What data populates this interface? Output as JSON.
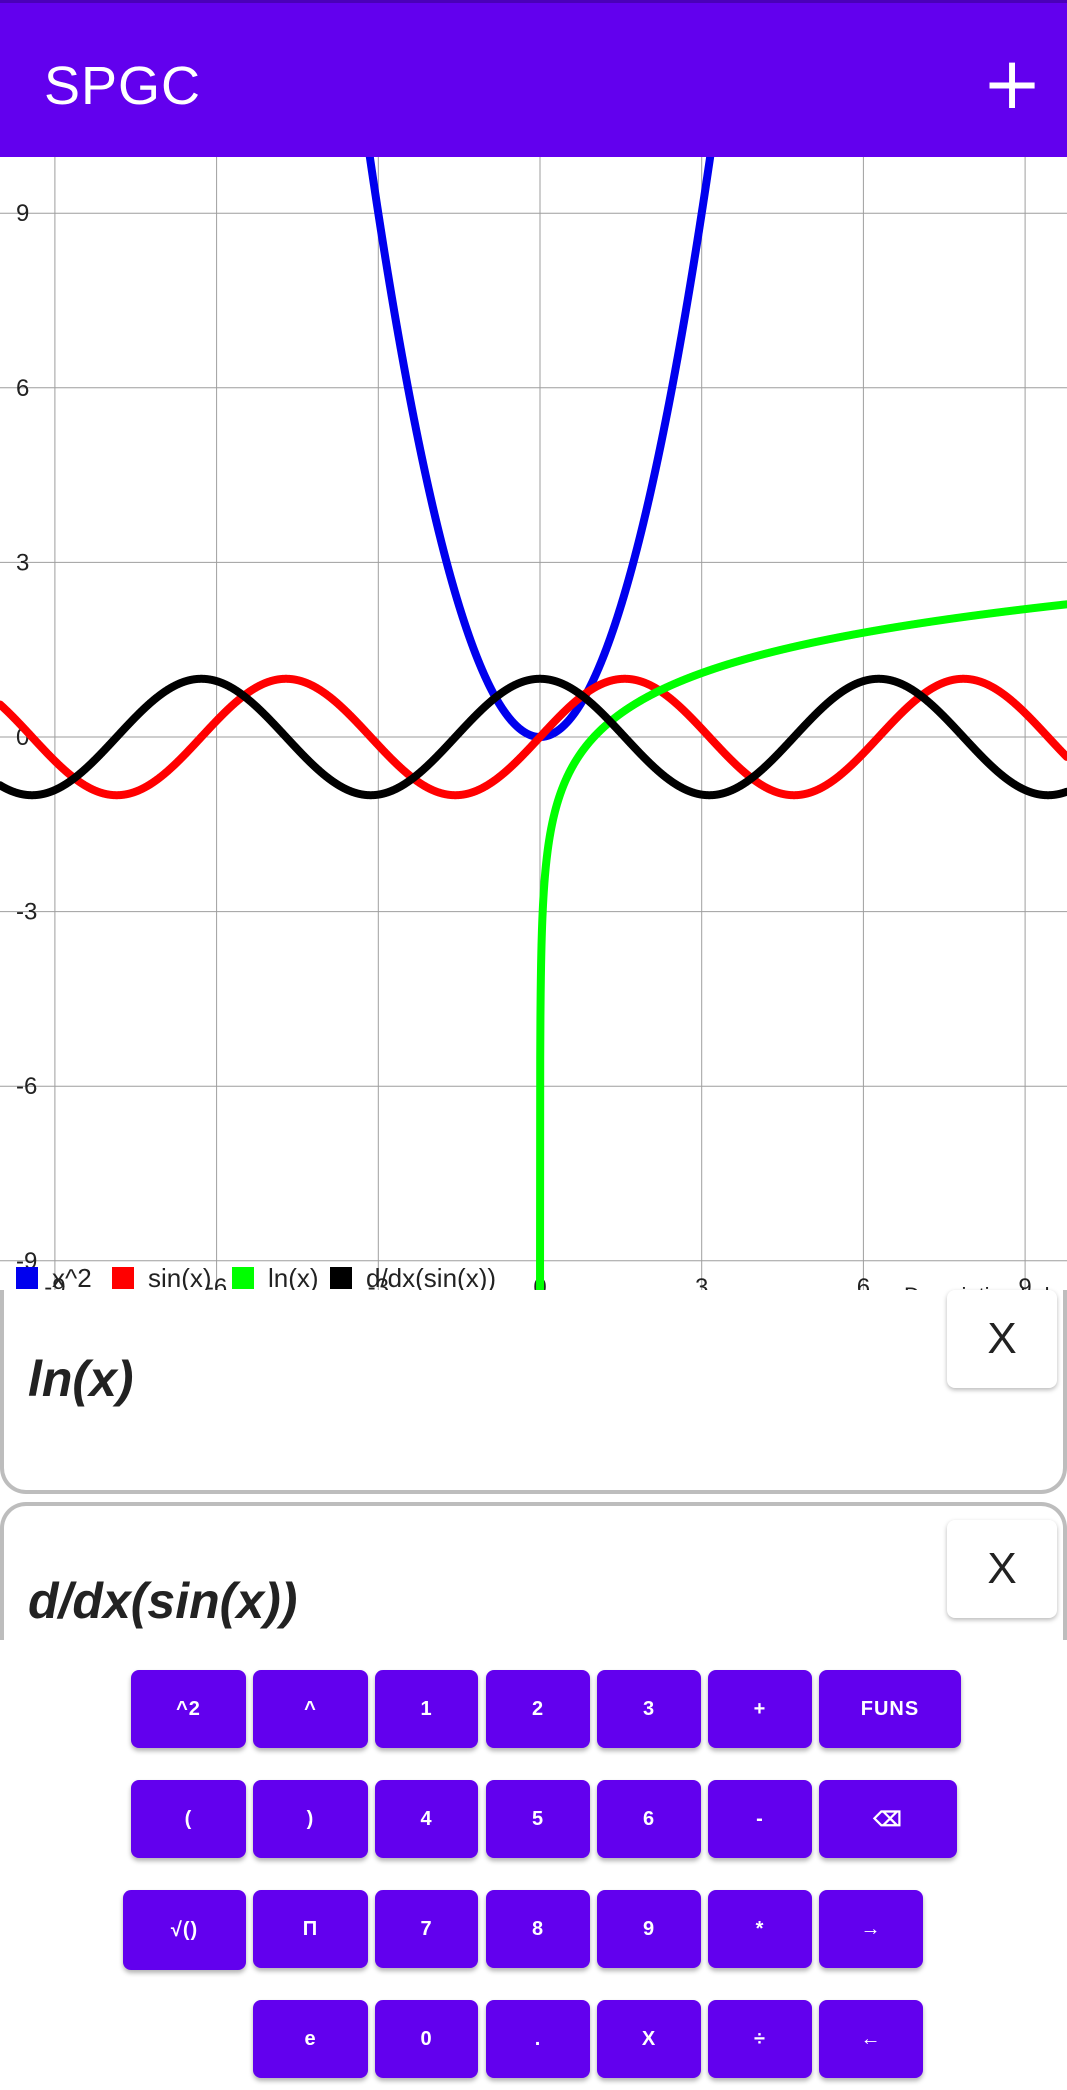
{
  "app": {
    "title": "SPGC",
    "add_label": "+"
  },
  "chart_data": {
    "type": "line",
    "xlim": [
      -12,
      13
    ],
    "ylim": [
      -10.3,
      10.3
    ],
    "x_ticks": [
      "-9",
      "-6",
      "-3",
      "0",
      "3",
      "6",
      "9"
    ],
    "y_ticks": [
      "9",
      "6",
      "3",
      "0",
      "-3",
      "-6",
      "-9"
    ],
    "grid": true,
    "legend_position": "bottom-left",
    "description_label": "Description Label",
    "series": [
      {
        "name": "x^2",
        "color": "#0000EE",
        "x": [
          -2.7,
          -2,
          -1,
          0,
          1,
          2,
          2.7
        ],
        "y": [
          7.29,
          4,
          1,
          0,
          1,
          4,
          7.29
        ]
      },
      {
        "name": "sin(x)",
        "color": "#FF0000",
        "x": [
          -10,
          -7.85,
          -4.71,
          -1.57,
          0,
          1.57,
          4.71,
          7.85,
          9.5
        ],
        "y": [
          0.54,
          -1,
          1,
          -1,
          0,
          1,
          -1,
          1,
          -0.08
        ]
      },
      {
        "name": "ln(x)",
        "color": "#00FF00",
        "x": [
          0.0001,
          0.1,
          1,
          3,
          6,
          9.8
        ],
        "y": [
          -9.21,
          -2.3,
          0,
          1.1,
          1.79,
          2.28
        ]
      },
      {
        "name": "d/dx(sin(x))",
        "color": "#000000",
        "x": [
          -10,
          -6.28,
          -3.14,
          0,
          3.14,
          6.28,
          9.8
        ],
        "y": [
          -0.84,
          1,
          -1,
          1,
          -1,
          1,
          -0.93
        ]
      }
    ]
  },
  "functions": [
    {
      "text": "ln(x)",
      "remove_label": "X"
    },
    {
      "text": "d/dx(sin(x))",
      "remove_label": "X"
    }
  ],
  "keyboard": {
    "rows": [
      [
        {
          "label": "^2",
          "name": "key-square"
        },
        {
          "label": "^",
          "name": "key-power"
        },
        {
          "label": "1",
          "name": "key-1"
        },
        {
          "label": "2",
          "name": "key-2"
        },
        {
          "label": "3",
          "name": "key-3"
        },
        {
          "label": "+",
          "name": "key-plus"
        },
        {
          "label": "FUNS",
          "name": "key-funs"
        }
      ],
      [
        {
          "label": "(",
          "name": "key-open-paren"
        },
        {
          "label": ")",
          "name": "key-close-paren"
        },
        {
          "label": "4",
          "name": "key-4"
        },
        {
          "label": "5",
          "name": "key-5"
        },
        {
          "label": "6",
          "name": "key-6"
        },
        {
          "label": "-",
          "name": "key-minus"
        },
        {
          "label": "⌫",
          "name": "key-backspace"
        }
      ],
      [
        {
          "label": "√()",
          "name": "key-sqrt"
        },
        {
          "label": "Π",
          "name": "key-pi"
        },
        {
          "label": "7",
          "name": "key-7"
        },
        {
          "label": "8",
          "name": "key-8"
        },
        {
          "label": "9",
          "name": "key-9"
        },
        {
          "label": "*",
          "name": "key-multiply"
        },
        {
          "label": "→",
          "name": "key-cursor-right"
        }
      ],
      [
        {
          "label": "e",
          "name": "key-e"
        },
        {
          "label": "0",
          "name": "key-0"
        },
        {
          "label": ".",
          "name": "key-decimal"
        },
        {
          "label": "X",
          "name": "key-x"
        },
        {
          "label": "÷",
          "name": "key-divide"
        },
        {
          "label": "←",
          "name": "key-cursor-left"
        }
      ]
    ]
  }
}
